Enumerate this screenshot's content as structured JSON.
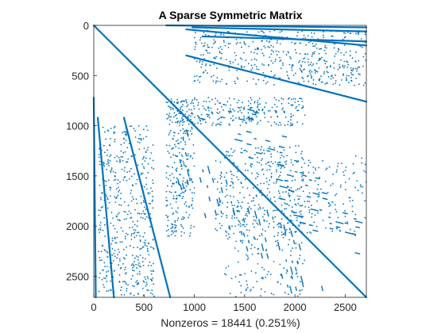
{
  "chart_data": {
    "type": "scatter",
    "title": "A Sparse Symmetric Matrix",
    "xlabel": "Nonzeros = 18441 (0.251%)",
    "ylabel": "",
    "xlim": [
      0,
      2710
    ],
    "ylim": [
      0,
      2710
    ],
    "y_reversed": true,
    "grid": false,
    "marker_color": "#0072BD",
    "xticks": [
      "0",
      "500",
      "1000",
      "1500",
      "2000",
      "2500"
    ],
    "yticks": [
      "0",
      "500",
      "1000",
      "1500",
      "2000",
      "2500"
    ],
    "structures": {
      "dense_lines": [
        {
          "name": "main-diagonal",
          "from": [
            0,
            0
          ],
          "to": [
            2710,
            2710
          ]
        },
        {
          "name": "lower-band-a",
          "from": [
            40,
            920
          ],
          "to": [
            200,
            2710
          ]
        },
        {
          "name": "lower-band-b",
          "from": [
            300,
            920
          ],
          "to": [
            760,
            2710
          ]
        },
        {
          "name": "upper-band-a",
          "from": [
            920,
            40
          ],
          "to": [
            2710,
            200
          ]
        },
        {
          "name": "upper-band-b",
          "from": [
            920,
            300
          ],
          "to": [
            2710,
            760
          ]
        },
        {
          "name": "lower-left-edge",
          "from": [
            0,
            720
          ],
          "to": [
            20,
            2710
          ]
        },
        {
          "name": "upper-top-edge",
          "from": [
            720,
            0
          ],
          "to": [
            2710,
            20
          ]
        },
        {
          "name": "upper-block-line-a",
          "from": [
            1080,
            110
          ],
          "to": [
            2710,
            160
          ]
        },
        {
          "name": "upper-block-line-b",
          "from": [
            980,
            20
          ],
          "to": [
            2710,
            60
          ]
        }
      ],
      "dotted_bands": [
        {
          "name": "upper-right-block",
          "from": [
            1000,
            50
          ],
          "to": [
            2710,
            600
          ],
          "count": 500
        },
        {
          "name": "lower-left-block",
          "from": [
            50,
            1000
          ],
          "to": [
            600,
            2710
          ],
          "count": 500
        },
        {
          "name": "mid-right-band",
          "from": [
            1200,
            1300
          ],
          "to": [
            2710,
            2100
          ],
          "count": 300
        },
        {
          "name": "mid-left-band",
          "from": [
            1300,
            1200
          ],
          "to": [
            2100,
            2710
          ],
          "count": 300
        },
        {
          "name": "center-strip-h",
          "from": [
            740,
            720
          ],
          "to": [
            2100,
            1000
          ],
          "count": 260
        },
        {
          "name": "center-strip-v",
          "from": [
            720,
            740
          ],
          "to": [
            1000,
            2100
          ],
          "count": 260
        }
      ]
    }
  }
}
